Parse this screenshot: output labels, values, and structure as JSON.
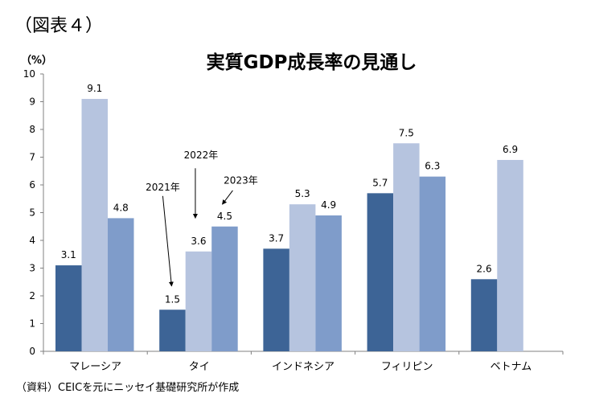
{
  "figure_label": "（図表４）",
  "source_note": "（資料）CEICを元にニッセイ基礎研究所が作成",
  "colors": {
    "2021": "#3d6496",
    "2022": "#b6c4df",
    "2023": "#7f9cca",
    "axis": "#808080"
  },
  "chart_data": {
    "type": "bar",
    "title": "実質GDP成長率の見通し",
    "ylabel": "（%）",
    "xlabel": "",
    "ylim": [
      0,
      10
    ],
    "yticks": [
      "0",
      "1",
      "2",
      "3",
      "4",
      "5",
      "6",
      "7",
      "8",
      "9",
      "10"
    ],
    "grid": false,
    "categories": [
      "マレーシア",
      "タイ",
      "インドネシア",
      "フィリピン",
      "ベトナム"
    ],
    "series": [
      {
        "name": "2021年",
        "values": [
          3.1,
          1.5,
          3.7,
          5.7,
          2.6
        ],
        "labels": [
          "3.1",
          "1.5",
          "3.7",
          "5.7",
          "2.6"
        ]
      },
      {
        "name": "2022年",
        "values": [
          9.1,
          3.6,
          5.3,
          7.5,
          6.9
        ],
        "labels": [
          "9.1",
          "3.6",
          "5.3",
          "7.5",
          "6.9"
        ]
      },
      {
        "name": "2023年",
        "values": [
          4.8,
          4.5,
          4.9,
          6.3,
          null
        ],
        "labels": [
          "4.8",
          "4.5",
          "4.9",
          "6.3",
          ""
        ]
      }
    ]
  }
}
